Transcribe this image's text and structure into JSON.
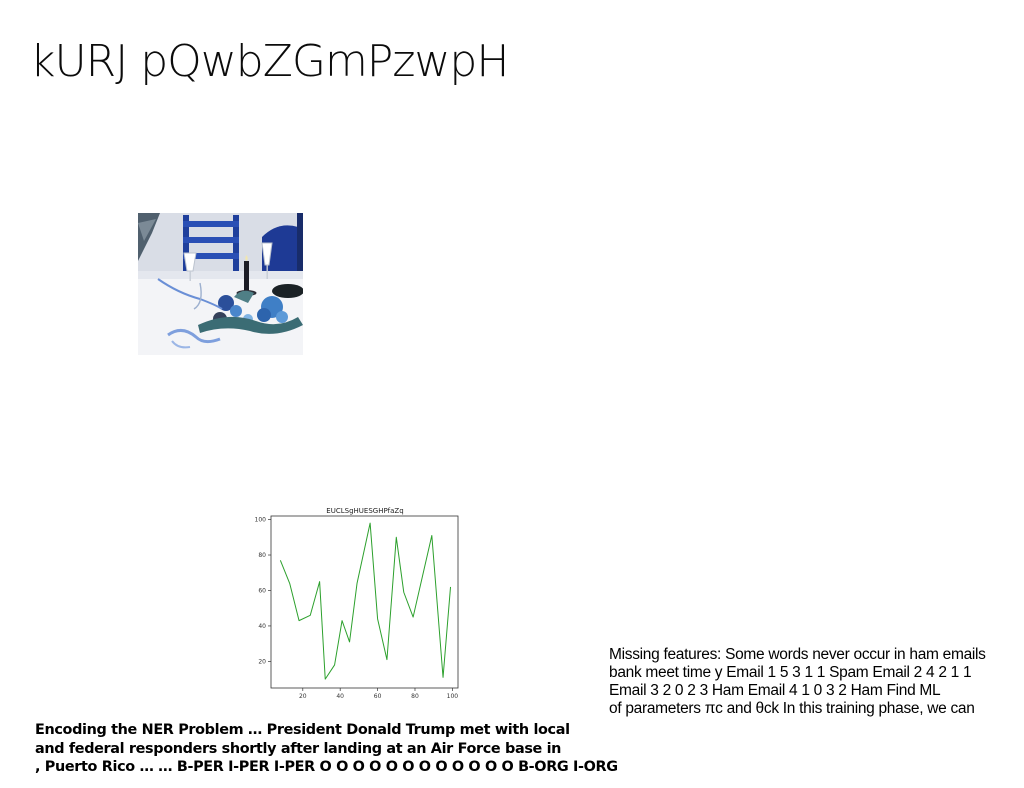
{
  "slide": {
    "title": "kURJ pQwbZGmPzwpH"
  },
  "photo": {
    "subject": "table-setting-photo"
  },
  "chart_data": {
    "type": "line",
    "title": "EUCLSgHUESGHPfaZq",
    "x": [
      8,
      13,
      18,
      24,
      29,
      32,
      37,
      41,
      45,
      49,
      56,
      60,
      65,
      70,
      74,
      79,
      84,
      89,
      95,
      99
    ],
    "series": [
      {
        "values": [
          77,
          64,
          43,
          46,
          65,
          10,
          18,
          43,
          31,
          64,
          98,
          44,
          21,
          90,
          59,
          45,
          68,
          91,
          11,
          62
        ],
        "color": "#2ca02c"
      }
    ],
    "xticks": [
      20,
      40,
      60,
      80,
      100
    ],
    "yticks": [
      20,
      40,
      60,
      80,
      100
    ],
    "xlim": [
      3,
      103
    ],
    "ylim": [
      5,
      102
    ],
    "grid": false
  },
  "ner": {
    "lines": [
      "Encoding the NER Problem … President Donald Trump met with local",
      "and federal responders shortly after landing at an Air Force base in",
      ", Puerto Rico … … B-PER I-PER I-PER O O O O O O O O O O O O B-ORG I-ORG"
    ]
  },
  "missing": {
    "lines": [
      "Missing features: Some words never occur in ham emails",
      "bank meet time y Email 1 5 3 1 1 Spam Email 2 4 2 1 1",
      "Email 3 2 0 2 3 Ham Email 4 1 0 3 2 Ham Find ML",
      "of parameters πc and θck In this training phase, we can"
    ]
  }
}
